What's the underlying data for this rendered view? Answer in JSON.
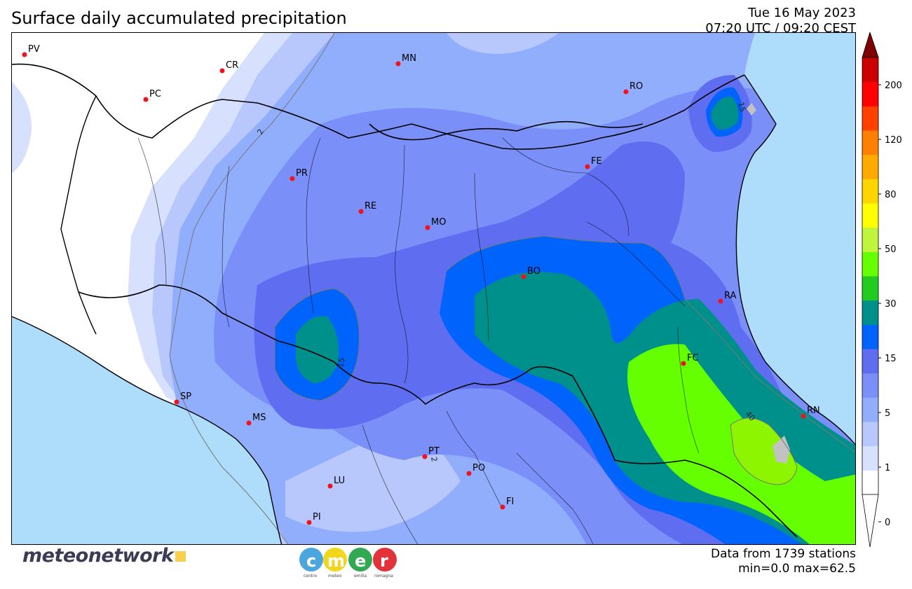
{
  "header": {
    "title": "Surface daily accumulated precipitation",
    "date": "Tue 16 May 2023",
    "time": "07:20 UTC / 09:20 CEST"
  },
  "map": {
    "cities": [
      {
        "code": "PV"
      },
      {
        "code": "CR"
      },
      {
        "code": "MN"
      },
      {
        "code": "PC"
      },
      {
        "code": "RO"
      },
      {
        "code": "FE"
      },
      {
        "code": "PR"
      },
      {
        "code": "RE"
      },
      {
        "code": "MO"
      },
      {
        "code": "BO"
      },
      {
        "code": "RA"
      },
      {
        "code": "FC"
      },
      {
        "code": "RN"
      },
      {
        "code": "SP"
      },
      {
        "code": "MS"
      },
      {
        "code": "PT"
      },
      {
        "code": "PO"
      },
      {
        "code": "LU"
      },
      {
        "code": "FI"
      },
      {
        "code": "PI"
      }
    ],
    "contour_labels": [
      "2",
      "15",
      "15",
      "2",
      "40"
    ],
    "colors": {
      "sea": "#aedcfb",
      "dry": "#ffffff",
      "level_0_5": "#d7e1fe",
      "level_1": "#b8c8fc",
      "level_2": "#91aefc",
      "level_5": "#7a8ff8",
      "level_10": "#5f6ef0",
      "level_15": "#0064fc",
      "level_20": "#00908c",
      "level_40": "#66ff00",
      "level_50": "#8ef500",
      "masked": "#c2c2c2",
      "station": "#f0131e"
    }
  },
  "colorbar": {
    "tick_labels": [
      "0",
      "1",
      "5",
      "15",
      "30",
      "50",
      "80",
      "120",
      "200"
    ],
    "segments": [
      "#ffffff",
      "#d7e1fe",
      "#b8c8fc",
      "#91aefc",
      "#7a8ff8",
      "#5f6ef0",
      "#0064fc",
      "#00908c",
      "#20cc20",
      "#66ff00",
      "#bff53d",
      "#ffff00",
      "#ffd500",
      "#ffaa00",
      "#ff8000",
      "#ff4000",
      "#ff0000",
      "#cc0000"
    ],
    "extend_color": "#800000"
  },
  "footer": {
    "stations": "Data from 1739 stations",
    "minmax": "min=0.0 max=62.5"
  },
  "logos": {
    "meteonetwork": "meteonetwork",
    "cmer": [
      "c",
      "m",
      "e",
      "r"
    ],
    "cmer_sub": [
      "centro",
      "meteo",
      "emilia",
      "romagna"
    ]
  }
}
